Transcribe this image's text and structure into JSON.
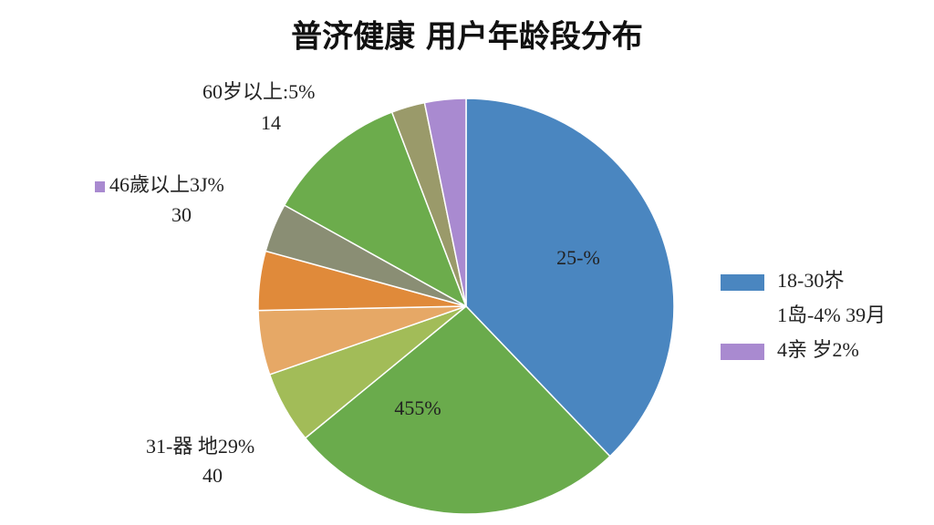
{
  "chart_data": {
    "type": "pie",
    "title": "普济健康 用户年龄段分布",
    "values": [
      37.8,
      26.2,
      5.6,
      5,
      4.6,
      3.8,
      11.1,
      2.6,
      3.2
    ],
    "colors": [
      "#4a86c0",
      "#6aab4c",
      "#a2bc58",
      "#e6a866",
      "#e08a3a",
      "#8a8e74",
      "#6cac4c",
      "#9a9a6a",
      "#a98ad0"
    ],
    "inner_labels": [
      "25-%",
      "455%"
    ],
    "annotations": [
      {
        "text": "60岁以上:5%",
        "sub": "14"
      },
      {
        "text": "46歲以上3J%",
        "sub": "30",
        "color": "#a98ad0"
      },
      {
        "text": "31-器 地29%",
        "sub": "40"
      }
    ],
    "legend": [
      {
        "name": "18-30岕",
        "color": "#4a86c0"
      },
      {
        "name": "1岛-4% 39月"
      },
      {
        "name": "4亲 岁2%",
        "color": "#a98ad0"
      }
    ]
  }
}
